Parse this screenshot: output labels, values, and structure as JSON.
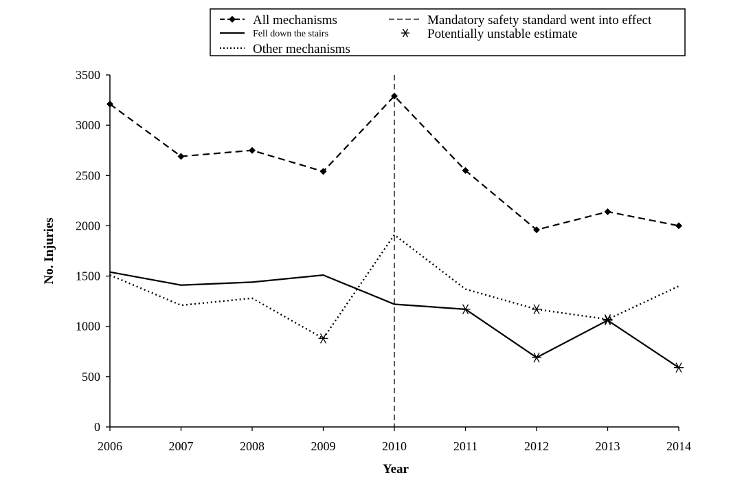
{
  "chart_data": {
    "type": "line",
    "title": "",
    "xlabel": "Year",
    "ylabel": "No. Injuries",
    "x": [
      2006,
      2007,
      2008,
      2009,
      2010,
      2011,
      2012,
      2013,
      2014
    ],
    "xticks": [
      "2006",
      "2007",
      "2008",
      "2009",
      "2010",
      "2011",
      "2012",
      "2013",
      "2014"
    ],
    "ylim": [
      0,
      3500
    ],
    "yticks": [
      "0",
      "500",
      "1000",
      "1500",
      "2000",
      "2500",
      "3000",
      "3500"
    ],
    "grid": false,
    "legend_position": "top",
    "reference_line": {
      "x": 2010,
      "label": "Mandatory safety standard went into effect"
    },
    "unstable_marker_label": "Potentially unstable estimate",
    "series": [
      {
        "name": "All mechanisms",
        "style": "dashed-diamond",
        "values": [
          3210,
          2690,
          2750,
          2540,
          3290,
          2550,
          1960,
          2140,
          2000
        ],
        "unstable": []
      },
      {
        "name": "Fell down the stairs",
        "style": "solid",
        "values": [
          1540,
          1410,
          1440,
          1510,
          1220,
          1170,
          690,
          1060,
          590
        ],
        "unstable": [
          2011,
          2012,
          2013,
          2014
        ]
      },
      {
        "name": "Other mechanisms",
        "style": "dotted",
        "values": [
          1510,
          1210,
          1280,
          880,
          1910,
          1370,
          1170,
          1070,
          1400
        ],
        "unstable": [
          2009,
          2012,
          2013
        ]
      }
    ]
  }
}
